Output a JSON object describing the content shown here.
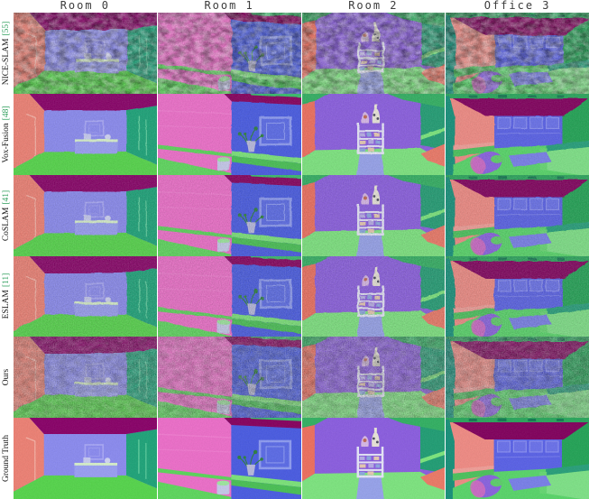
{
  "figure": {
    "kind": "qualitative-reconstruction-comparison-grid",
    "grid": {
      "rows": 6,
      "columns": 4
    }
  },
  "column_headers": [
    {
      "label": "Room 0",
      "scene": "room0"
    },
    {
      "label": "Room 1",
      "scene": "room1"
    },
    {
      "label": "Room 2",
      "scene": "room2"
    },
    {
      "label": "Office 3",
      "scene": "office3"
    }
  ],
  "row_labels": [
    {
      "label": "NICE-SLAM",
      "citation": "[55]"
    },
    {
      "label": "Vox-Fusion",
      "citation": "[48]"
    },
    {
      "label": "CoSLAM",
      "citation": "[41]"
    },
    {
      "label": "ESLAM",
      "citation": "[11]"
    },
    {
      "label": "Ours",
      "citation": ""
    },
    {
      "label": "Ground Truth",
      "citation": ""
    }
  ],
  "colors": {
    "background": "#ffffff",
    "header_text": "#3c3c3c",
    "label_text": "#111111",
    "citation": "#2e9e5b",
    "normal_map_palette": {
      "room0": {
        "ceiling": "#8a0069",
        "left": "#f08275",
        "leftLight": "#f8b6aa",
        "back": "#8c8cf2",
        "right": "#1ea57a",
        "rightLight": "#5ecf9f",
        "floor": "#56d74c",
        "frame": "#abaaf8",
        "tableTop": "#d9f2cc",
        "tableFront": "#9ba0f5",
        "objectA": "#c9cdf3",
        "objectB": "#d2d6f7"
      },
      "room1": {
        "wallPink": "#ef6fcb",
        "wallPinkStripe": "#f584d6",
        "ceiling": "#88005f",
        "ceilGreen": "#38c06c",
        "wallBlue": "#4a5ce4",
        "stripe": "#5bd75b",
        "floor": "#5ed95e",
        "ledgeTop": "#7ce57a",
        "ledgeFront": "#4ac255",
        "frameLight": "#8f9df3",
        "frameFill": "#5c6ce8",
        "plant": "#2e8040",
        "vase": "#b9bade",
        "potBody": "#c7caec",
        "potTop": "#9fe8a0"
      },
      "room2": {
        "back": "#8c5ee2",
        "ceilGreen": "#32b263",
        "left": "#f0705f",
        "right": "#209f75",
        "rightStripe": "#7de97e",
        "cornerSalmon": "#ef7a67",
        "floor": "#7ee780",
        "column": "#98a4ee",
        "shelfFrame": "#e9e9fb",
        "blobA": "#b9aee8",
        "blobB": "#8ea8e2",
        "blobC": "#e8cbb2",
        "vaseA": "#d9b9e9",
        "vaseASpot": "#c26a57",
        "vaseB": "#ebe7db",
        "vaseBSpot": "#4a4a60"
      },
      "office3": {
        "topStrip": "#2aa85d",
        "topStripDark": "#137a52",
        "ceiling": "#83005e",
        "leftStrip": "#17927b",
        "left": "#f28c85",
        "back": "#5a62e9",
        "windowFrame": "#8a90f3",
        "windowFill": "#6b72ec",
        "rightWall": "#23a557",
        "floor": "#59d76a",
        "benchTop": "#f2a099",
        "benchFront": "#4cc45d",
        "couchBack": "#28a17b",
        "couchSeat": "#7fe488",
        "couchArm": "#67da73",
        "table": "#7a80eb",
        "chair": "#8a63e1",
        "chairHighlight": "#d66cc1",
        "chairSeat": "#5ecf6b"
      }
    }
  }
}
